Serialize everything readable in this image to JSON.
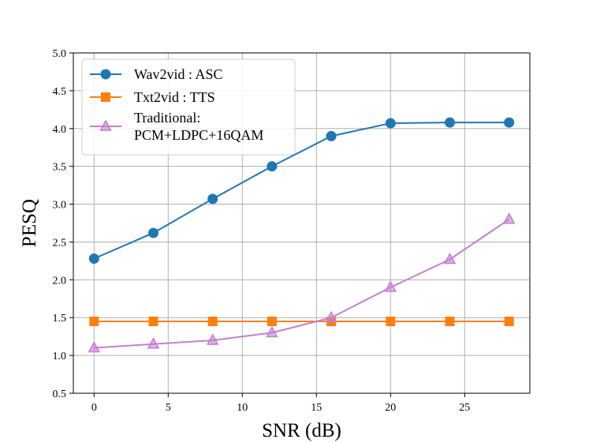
{
  "chart_data": {
    "type": "line",
    "title": "",
    "xlabel": "SNR (dB)",
    "ylabel": "PESQ",
    "xlim": [
      -1.4,
      29.4
    ],
    "ylim": [
      0.5,
      5.0
    ],
    "xticks": [
      0,
      5,
      10,
      15,
      20,
      25
    ],
    "yticks": [
      0.5,
      1.0,
      1.5,
      2.0,
      2.5,
      3.0,
      3.5,
      4.0,
      4.5,
      5.0
    ],
    "xtick_labels": [
      "0",
      "5",
      "10",
      "15",
      "20",
      "25"
    ],
    "ytick_labels": [
      "0.5",
      "1.0",
      "1.5",
      "2.0",
      "2.5",
      "3.0",
      "3.5",
      "4.0",
      "4.5",
      "5.0"
    ],
    "grid": true,
    "legend_position": "top-left",
    "x": [
      0,
      4,
      8,
      12,
      16,
      20,
      24,
      28
    ],
    "series": [
      {
        "name": "Wav2vid : ASC",
        "legend_lines": [
          "Wav2vid : ASC"
        ],
        "values": [
          2.28,
          2.62,
          3.07,
          3.5,
          3.9,
          4.07,
          4.08,
          4.08
        ],
        "color": "#1f77b4",
        "marker": "circle"
      },
      {
        "name": "Txt2vid : TTS",
        "legend_lines": [
          "Txt2vid : TTS"
        ],
        "values": [
          1.45,
          1.45,
          1.45,
          1.45,
          1.45,
          1.45,
          1.45,
          1.45
        ],
        "color": "#ff7f0e",
        "marker": "square"
      },
      {
        "name": "Traditional: PCM+LDPC+16QAM",
        "legend_lines": [
          "Traditional:",
          " PCM+LDPC+16QAM"
        ],
        "values": [
          1.1,
          1.15,
          1.2,
          1.3,
          1.5,
          1.9,
          2.27,
          2.8
        ],
        "color": "#c47fd0",
        "marker": "triangle"
      }
    ]
  }
}
